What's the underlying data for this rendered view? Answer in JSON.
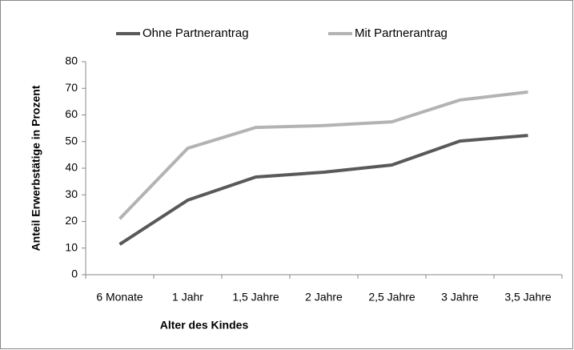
{
  "chart_data": {
    "type": "line",
    "categories": [
      "6 Monate",
      "1 Jahr",
      "1,5 Jahre",
      "2 Jahre",
      "2,5 Jahre",
      "3 Jahre",
      "3,5 Jahre"
    ],
    "series": [
      {
        "name": "Ohne Partnerantrag",
        "color": "#595959",
        "values": [
          11.4,
          28,
          36.7,
          38.5,
          41.2,
          50.2,
          52.3
        ]
      },
      {
        "name": "Mit Partnerantrag",
        "color": "#b3b3b3",
        "values": [
          21,
          47.5,
          55.3,
          56,
          57.4,
          65.6,
          68.6
        ]
      }
    ],
    "xlabel": "Alter des Kindes",
    "ylabel": "Anteil Erwerbstätige in Prozent",
    "ylim": [
      0,
      80
    ],
    "yticks": [
      0,
      10,
      20,
      30,
      40,
      50,
      60,
      70,
      80
    ],
    "grid": false,
    "legend": "top"
  }
}
